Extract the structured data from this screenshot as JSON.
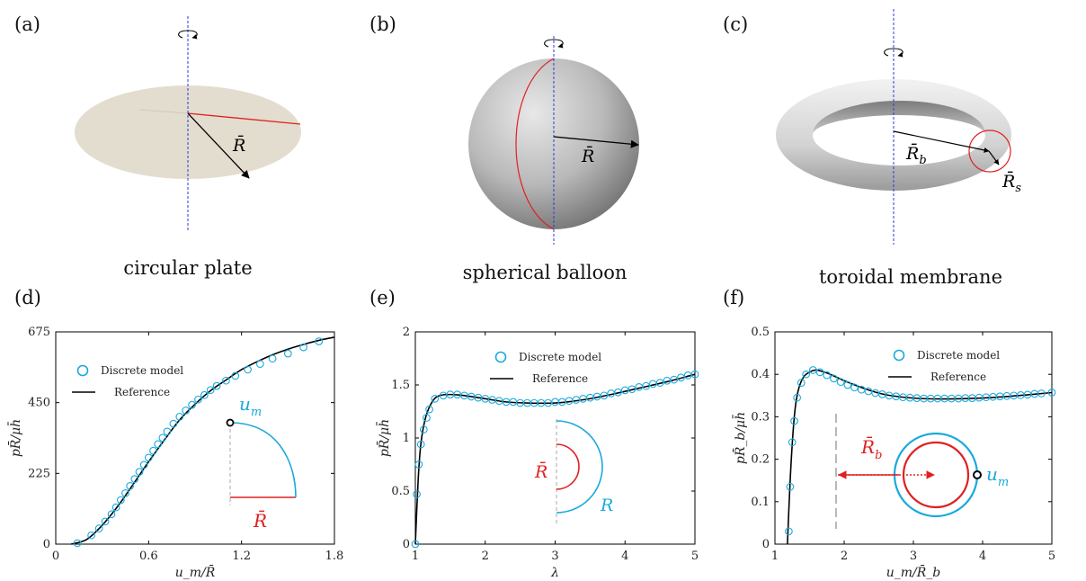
{
  "panels_top": [
    {
      "letter": "(a)",
      "caption": "circular plate",
      "label": "R̄"
    },
    {
      "letter": "(b)",
      "caption": "spherical balloon",
      "label": "R̄"
    },
    {
      "letter": "(c)",
      "caption": "toroidal membrane",
      "label_b": "R̄",
      "label_b_sub": "b",
      "label_s": "R̄",
      "label_s_sub": "s"
    }
  ],
  "chart_data": [
    {
      "letter": "(d)",
      "type": "line",
      "xlabel": "u_m/R̄",
      "ylabel": "pR̄/μh̄",
      "xlim": [
        0,
        1.8
      ],
      "ylim": [
        0,
        675
      ],
      "xticks": [
        "0",
        "0.6",
        "1.2",
        "1.8"
      ],
      "yticks": [
        "0",
        "225",
        "450",
        "675"
      ],
      "legend": [
        "Discrete model",
        "Reference"
      ],
      "inset": {
        "top": "u",
        "top_sub": "m",
        "bottom": "R̄"
      },
      "series": [
        {
          "name": "Discrete model",
          "x": [
            0.14,
            0.23,
            0.28,
            0.32,
            0.36,
            0.39,
            0.42,
            0.45,
            0.48,
            0.51,
            0.54,
            0.57,
            0.6,
            0.63,
            0.66,
            0.69,
            0.72,
            0.76,
            0.8,
            0.84,
            0.88,
            0.92,
            0.96,
            1.0,
            1.04,
            1.1,
            1.16,
            1.24,
            1.32,
            1.4,
            1.5,
            1.6,
            1.7
          ],
          "y": [
            3,
            28,
            50,
            72,
            95,
            117,
            140,
            162,
            185,
            207,
            230,
            252,
            275,
            297,
            318,
            338,
            358,
            383,
            405,
            425,
            443,
            460,
            474,
            490,
            503,
            520,
            535,
            555,
            573,
            590,
            606,
            626,
            645
          ]
        },
        {
          "name": "Reference",
          "x": [
            0.1,
            0.2,
            0.3,
            0.4,
            0.5,
            0.6,
            0.7,
            0.8,
            0.9,
            1.0,
            1.1,
            1.2,
            1.3,
            1.4,
            1.5,
            1.6,
            1.7,
            1.8
          ],
          "y": [
            0,
            15,
            60,
            120,
            190,
            262,
            330,
            395,
            445,
            488,
            522,
            555,
            580,
            602,
            620,
            635,
            648,
            658
          ]
        }
      ]
    },
    {
      "letter": "(e)",
      "type": "line",
      "xlabel": "λ",
      "ylabel": "pR̄/μh̄",
      "xlim": [
        1,
        5
      ],
      "ylim": [
        0,
        2
      ],
      "xticks": [
        "1",
        "2",
        "3",
        "4",
        "5"
      ],
      "yticks": [
        "0",
        "0.5",
        "1",
        "1.5",
        "2"
      ],
      "legend": [
        "Discrete model",
        "Reference"
      ],
      "inset": {
        "inner": "R̄",
        "outer": "R"
      },
      "series": [
        {
          "name": "Discrete model",
          "x": [
            1.0,
            1.02,
            1.05,
            1.08,
            1.12,
            1.16,
            1.2,
            1.28,
            1.4,
            1.5,
            1.6,
            1.7,
            1.8,
            1.9,
            2.0,
            2.1,
            2.2,
            2.3,
            2.4,
            2.5,
            2.6,
            2.7,
            2.8,
            2.9,
            3.0,
            3.1,
            3.2,
            3.3,
            3.4,
            3.5,
            3.6,
            3.7,
            3.8,
            3.9,
            4.0,
            4.1,
            4.2,
            4.3,
            4.4,
            4.5,
            4.6,
            4.7,
            4.8,
            4.9,
            5.0
          ],
          "y": [
            0,
            0.47,
            0.75,
            0.94,
            1.08,
            1.19,
            1.27,
            1.37,
            1.4,
            1.41,
            1.41,
            1.4,
            1.39,
            1.38,
            1.37,
            1.36,
            1.35,
            1.34,
            1.34,
            1.33,
            1.33,
            1.33,
            1.33,
            1.33,
            1.34,
            1.34,
            1.35,
            1.36,
            1.37,
            1.38,
            1.39,
            1.4,
            1.42,
            1.43,
            1.45,
            1.46,
            1.48,
            1.49,
            1.51,
            1.52,
            1.54,
            1.55,
            1.57,
            1.59,
            1.6
          ]
        },
        {
          "name": "Reference",
          "x": [
            1.0,
            1.04,
            1.08,
            1.15,
            1.25,
            1.35,
            1.5,
            1.7,
            2.0,
            2.3,
            2.6,
            3.0,
            3.4,
            3.8,
            4.2,
            4.6,
            5.0
          ],
          "y": [
            0,
            0.6,
            0.95,
            1.2,
            1.35,
            1.4,
            1.41,
            1.4,
            1.37,
            1.34,
            1.33,
            1.33,
            1.36,
            1.41,
            1.47,
            1.53,
            1.6
          ]
        }
      ]
    },
    {
      "letter": "(f)",
      "type": "line",
      "xlabel": "u_m/R̄_b",
      "ylabel": "pR̄_b/μh̄",
      "xlim": [
        1,
        5
      ],
      "ylim": [
        0,
        0.5
      ],
      "xticks": [
        "1",
        "2",
        "3",
        "4",
        "5"
      ],
      "yticks": [
        "0",
        "0.1",
        "0.2",
        "0.3",
        "0.4",
        "0.5"
      ],
      "legend": [
        "Discrete model",
        "Reference"
      ],
      "inset": {
        "label": "R̄",
        "label_sub": "b",
        "point": "u",
        "point_sub": "m"
      },
      "series": [
        {
          "name": "Discrete model",
          "x": [
            1.2,
            1.22,
            1.25,
            1.28,
            1.32,
            1.38,
            1.45,
            1.55,
            1.65,
            1.75,
            1.85,
            1.95,
            2.05,
            2.15,
            2.25,
            2.35,
            2.45,
            2.55,
            2.65,
            2.75,
            2.85,
            2.95,
            3.05,
            3.15,
            3.25,
            3.35,
            3.45,
            3.55,
            3.65,
            3.75,
            3.85,
            3.95,
            4.05,
            4.15,
            4.25,
            4.35,
            4.45,
            4.55,
            4.65,
            4.75,
            4.85,
            5.0
          ],
          "y": [
            0.03,
            0.135,
            0.24,
            0.29,
            0.345,
            0.38,
            0.4,
            0.41,
            0.405,
            0.398,
            0.39,
            0.382,
            0.375,
            0.369,
            0.364,
            0.36,
            0.356,
            0.353,
            0.35,
            0.348,
            0.346,
            0.345,
            0.344,
            0.343,
            0.343,
            0.343,
            0.343,
            0.343,
            0.343,
            0.344,
            0.344,
            0.345,
            0.346,
            0.347,
            0.348,
            0.349,
            0.35,
            0.351,
            0.352,
            0.354,
            0.355,
            0.357
          ]
        },
        {
          "name": "Reference",
          "x": [
            1.18,
            1.22,
            1.26,
            1.3,
            1.35,
            1.42,
            1.5,
            1.6,
            1.8,
            2.0,
            2.3,
            2.6,
            3.0,
            3.4,
            3.8,
            4.2,
            4.6,
            5.0
          ],
          "y": [
            0,
            0.15,
            0.26,
            0.33,
            0.37,
            0.395,
            0.405,
            0.41,
            0.4,
            0.385,
            0.366,
            0.352,
            0.344,
            0.342,
            0.343,
            0.346,
            0.351,
            0.357
          ]
        }
      ]
    }
  ]
}
